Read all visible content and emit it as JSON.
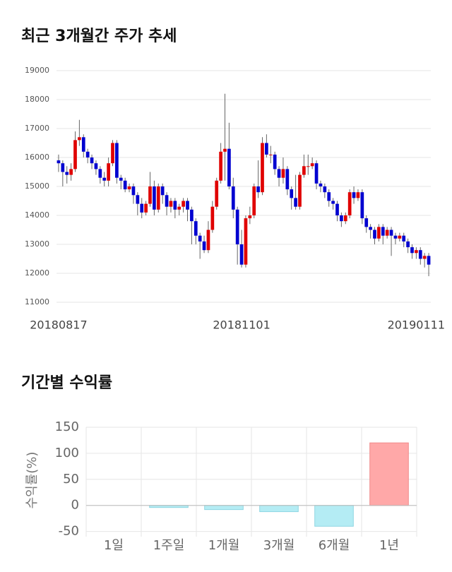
{
  "chart_data": [
    {
      "type": "candlestick",
      "title": "최근 3개월간 주가 추세",
      "categories": [
        "20180817",
        null,
        null,
        null,
        null,
        null,
        null,
        null,
        null,
        null,
        null,
        null,
        null,
        null,
        null,
        null,
        null,
        null,
        null,
        null,
        null,
        null,
        null,
        null,
        null,
        null,
        null,
        null,
        null,
        null,
        null,
        null,
        null,
        null,
        null,
        null,
        null,
        null,
        null,
        null,
        null,
        null,
        null,
        null,
        "20181101",
        null,
        null,
        null,
        null,
        null,
        null,
        null,
        null,
        null,
        null,
        null,
        null,
        null,
        null,
        null,
        null,
        null,
        null,
        null,
        null,
        null,
        null,
        null,
        null,
        null,
        null,
        null,
        null,
        null,
        null,
        null,
        null,
        null,
        null,
        null,
        null,
        null,
        null,
        null,
        null,
        null,
        null,
        null,
        null,
        "20190111"
      ],
      "open": [
        15900,
        15800,
        15500,
        15400,
        15600,
        16600,
        16700,
        16200,
        16000,
        15800,
        15600,
        15300,
        15200,
        15800,
        16500,
        15300,
        15200,
        14900,
        15000,
        14700,
        14400,
        14100,
        14400,
        15000,
        14200,
        15000,
        14700,
        14300,
        14500,
        14200,
        14300,
        14500,
        14200,
        13800,
        13300,
        13100,
        12800,
        13500,
        14300,
        15200,
        16200,
        16300,
        15000,
        14200,
        13000,
        12300,
        13900,
        14000,
        15000,
        14800,
        16500,
        16100,
        16100,
        15600,
        15300,
        15600,
        14900,
        14600,
        14300,
        15400,
        15700,
        15700,
        15800,
        15100,
        15000,
        14800,
        14500,
        14400,
        14000,
        13800,
        14000,
        14800,
        14600,
        14800,
        13900,
        13600,
        13500,
        13200,
        13600,
        13300,
        13500,
        13300,
        13200,
        13300,
        13100,
        12900,
        12700,
        12800,
        12500,
        12600
      ],
      "high": [
        16100,
        15900,
        15700,
        15800,
        16900,
        17300,
        16800,
        16300,
        16100,
        15900,
        15700,
        15500,
        16000,
        16600,
        16600,
        15400,
        15300,
        15100,
        15100,
        14800,
        14600,
        14500,
        15500,
        15200,
        15100,
        15100,
        14800,
        14600,
        14600,
        14400,
        14600,
        14600,
        14300,
        13900,
        13400,
        13300,
        13800,
        14500,
        15300,
        16500,
        18200,
        17200,
        15300,
        14300,
        13500,
        14000,
        14300,
        15100,
        15900,
        16700,
        16800,
        16400,
        16200,
        15700,
        16000,
        15700,
        15000,
        15400,
        15500,
        16100,
        16100,
        16000,
        15900,
        15200,
        15100,
        14900,
        14600,
        14500,
        14100,
        14100,
        14900,
        15000,
        14900,
        14900,
        14000,
        13700,
        13600,
        13700,
        13700,
        13600,
        13600,
        13400,
        13400,
        13400,
        13200,
        13000,
        12900,
        12900,
        12700,
        12700
      ],
      "low": [
        15500,
        15000,
        15100,
        15200,
        15500,
        16400,
        16000,
        15800,
        15600,
        15400,
        15100,
        15000,
        15000,
        15700,
        15100,
        14900,
        14800,
        14800,
        14400,
        14000,
        13900,
        14000,
        14300,
        14000,
        14100,
        14400,
        14000,
        14100,
        13900,
        14000,
        14100,
        13800,
        13000,
        13000,
        12500,
        12700,
        12700,
        13400,
        14200,
        15100,
        15200,
        14900,
        13900,
        12300,
        12200,
        12200,
        13700,
        13900,
        14600,
        14700,
        16000,
        15800,
        15400,
        15000,
        15100,
        14700,
        14200,
        14200,
        14200,
        15300,
        15400,
        15600,
        14900,
        14800,
        14600,
        14300,
        14200,
        13800,
        13600,
        13700,
        13900,
        14400,
        14500,
        13700,
        13400,
        13200,
        13000,
        13100,
        13000,
        13200,
        12600,
        13000,
        13100,
        12900,
        12700,
        12500,
        12500,
        12300,
        12200,
        11900
      ],
      "close": [
        15800,
        15500,
        15400,
        15600,
        16600,
        16700,
        16200,
        16000,
        15800,
        15600,
        15300,
        15200,
        15800,
        16500,
        15300,
        15200,
        14900,
        15000,
        14700,
        14400,
        14100,
        14400,
        15000,
        14200,
        15000,
        14700,
        14300,
        14500,
        14200,
        14300,
        14500,
        14200,
        13800,
        13300,
        13100,
        12800,
        13500,
        14300,
        15200,
        16200,
        16300,
        15000,
        14200,
        13000,
        12300,
        13900,
        14000,
        15000,
        14800,
        16500,
        16100,
        16100,
        15600,
        15300,
        15600,
        14900,
        14600,
        14300,
        15400,
        15700,
        15700,
        15800,
        15100,
        15000,
        14800,
        14500,
        14400,
        14000,
        13800,
        14000,
        14800,
        14600,
        14800,
        13900,
        13600,
        13500,
        13200,
        13600,
        13300,
        13500,
        13300,
        13200,
        13300,
        13100,
        12900,
        12700,
        12800,
        12500,
        12600,
        12300
      ],
      "up_color": "#e00000",
      "down_color": "#0000d0",
      "ylim": [
        11000,
        19000
      ],
      "yticks": [
        11000,
        12000,
        13000,
        14000,
        15000,
        16000,
        17000,
        18000,
        19000
      ],
      "grid": true
    },
    {
      "type": "bar",
      "title": "기간별 수익률",
      "ylabel": "수익률(%)",
      "categories": [
        "1일",
        "1주일",
        "1개월",
        "3개월",
        "6개월",
        "1년"
      ],
      "values": [
        0,
        -4,
        -8,
        -12,
        -40,
        120
      ],
      "positive_color": "#ffa8a8",
      "negative_color": "#b4ecf4",
      "ylim": [
        -60,
        150
      ],
      "yticks": [
        -50,
        0,
        50,
        100,
        150
      ],
      "grid": true
    }
  ]
}
